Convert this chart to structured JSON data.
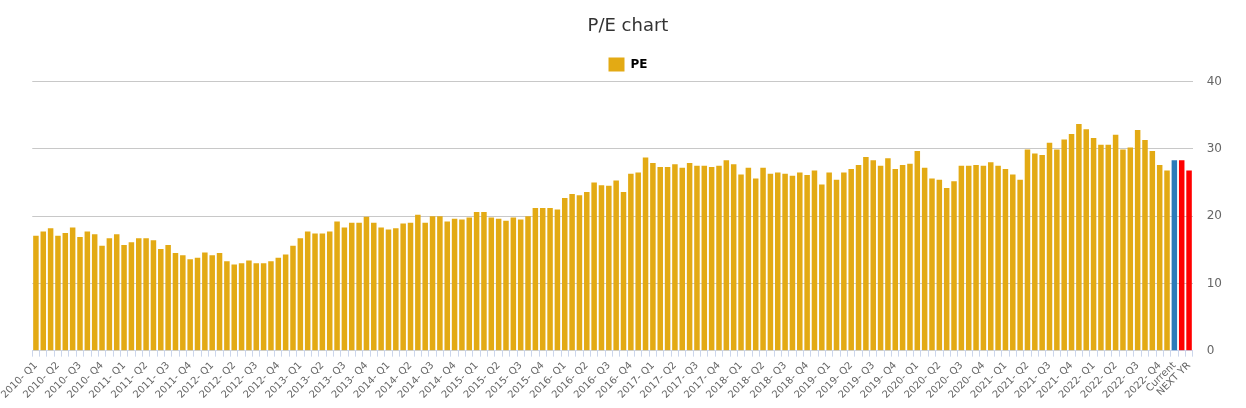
{
  "chart_data": {
    "type": "bar",
    "title": "P/E chart",
    "categories": [
      "2010- Q1",
      null,
      null,
      "2010- Q2",
      null,
      null,
      "2010- Q3",
      null,
      null,
      "2010- Q4",
      null,
      null,
      "2011- Q1",
      null,
      null,
      "2011- Q2",
      null,
      null,
      "2011- Q3",
      null,
      null,
      "2011- Q4",
      null,
      null,
      "2012- Q1",
      null,
      null,
      "2012- Q2",
      null,
      null,
      "2012- Q3",
      null,
      null,
      "2012- Q4",
      null,
      null,
      "2013- Q1",
      null,
      null,
      "2013- Q2",
      null,
      null,
      "2013- Q3",
      null,
      null,
      "2013- Q4",
      null,
      null,
      "2014- Q1",
      null,
      null,
      "2014- Q2",
      null,
      null,
      "2014- Q3",
      null,
      null,
      "2014- Q4",
      null,
      null,
      "2015- Q1",
      null,
      null,
      "2015- Q2",
      null,
      null,
      "2015- Q3",
      null,
      null,
      "2015- Q4",
      null,
      null,
      "2016- Q1",
      null,
      null,
      "2016- Q2",
      null,
      null,
      "2016- Q3",
      null,
      null,
      "2016- Q4",
      null,
      null,
      "2017- Q1",
      null,
      null,
      "2017- Q2",
      null,
      null,
      "2017- Q3",
      null,
      null,
      "2017- Q4",
      null,
      null,
      "2018- Q1",
      null,
      null,
      "2018- Q2",
      null,
      null,
      "2018- Q3",
      null,
      null,
      "2018- Q4",
      null,
      null,
      "2019- Q1",
      null,
      null,
      "2019- Q2",
      null,
      null,
      "2019- Q3",
      null,
      null,
      "2019- Q4",
      null,
      null,
      "2020- Q1",
      null,
      null,
      "2020- Q2",
      null,
      null,
      "2020- Q3",
      null,
      null,
      "2020- Q4",
      null,
      null,
      "2021- Q1",
      null,
      null,
      "2021- Q2",
      null,
      null,
      "2021- Q3",
      null,
      null,
      "2021- Q4",
      null,
      null,
      "2022- Q1",
      null,
      null,
      "2022- Q2",
      null,
      null,
      "2022- Q3",
      null,
      null,
      "2022- Q4",
      null,
      "Current",
      null,
      "NEXT YR"
    ],
    "series": [
      {
        "name": "PE",
        "color": "#e3aa14",
        "colors": [
          "#e3aa14",
          "#e3aa14",
          "#e3aa14",
          "#e3aa14",
          "#e3aa14",
          "#e3aa14",
          "#e3aa14",
          "#e3aa14",
          "#e3aa14",
          "#e3aa14",
          "#e3aa14",
          "#e3aa14",
          "#e3aa14",
          "#e3aa14",
          "#e3aa14",
          "#e3aa14",
          "#e3aa14",
          "#e3aa14",
          "#e3aa14",
          "#e3aa14",
          "#e3aa14",
          "#e3aa14",
          "#e3aa14",
          "#e3aa14",
          "#e3aa14",
          "#e3aa14",
          "#e3aa14",
          "#e3aa14",
          "#e3aa14",
          "#e3aa14",
          "#e3aa14",
          "#e3aa14",
          "#e3aa14",
          "#e3aa14",
          "#e3aa14",
          "#e3aa14",
          "#e3aa14",
          "#e3aa14",
          "#e3aa14",
          "#e3aa14",
          "#e3aa14",
          "#e3aa14",
          "#e3aa14",
          "#e3aa14",
          "#e3aa14",
          "#e3aa14",
          "#e3aa14",
          "#e3aa14",
          "#e3aa14",
          "#e3aa14",
          "#e3aa14",
          "#e3aa14",
          "#e3aa14",
          "#e3aa14",
          "#e3aa14",
          "#e3aa14",
          "#e3aa14",
          "#e3aa14",
          "#e3aa14",
          "#e3aa14",
          "#e3aa14",
          "#e3aa14",
          "#e3aa14",
          "#e3aa14",
          "#e3aa14",
          "#e3aa14",
          "#e3aa14",
          "#e3aa14",
          "#e3aa14",
          "#e3aa14",
          "#e3aa14",
          "#e3aa14",
          "#e3aa14",
          "#e3aa14",
          "#e3aa14",
          "#e3aa14",
          "#e3aa14",
          "#e3aa14",
          "#e3aa14",
          "#e3aa14",
          "#e3aa14",
          "#e3aa14",
          "#e3aa14",
          "#e3aa14",
          "#e3aa14",
          "#e3aa14",
          "#e3aa14",
          "#e3aa14",
          "#e3aa14",
          "#e3aa14",
          "#e3aa14",
          "#e3aa14",
          "#e3aa14",
          "#e3aa14",
          "#e3aa14",
          "#e3aa14",
          "#e3aa14",
          "#e3aa14",
          "#e3aa14",
          "#e3aa14",
          "#e3aa14",
          "#e3aa14",
          "#e3aa14",
          "#e3aa14",
          "#e3aa14",
          "#e3aa14",
          "#e3aa14",
          "#e3aa14",
          "#e3aa14",
          "#e3aa14",
          "#e3aa14",
          "#e3aa14",
          "#e3aa14",
          "#e3aa14",
          "#e3aa14",
          "#e3aa14",
          "#e3aa14",
          "#e3aa14",
          "#e3aa14",
          "#e3aa14",
          "#e3aa14",
          "#e3aa14",
          "#e3aa14",
          "#e3aa14",
          "#e3aa14",
          "#e3aa14",
          "#e3aa14",
          "#e3aa14",
          "#e3aa14",
          "#e3aa14",
          "#e3aa14",
          "#e3aa14",
          "#e3aa14",
          "#e3aa14",
          "#e3aa14",
          "#e3aa14",
          "#e3aa14",
          "#e3aa14",
          "#e3aa14",
          "#e3aa14",
          "#e3aa14",
          "#e3aa14",
          "#e3aa14",
          "#e3aa14",
          "#e3aa14",
          "#e3aa14",
          "#e3aa14",
          "#e3aa14",
          "#e3aa14",
          "#e3aa14",
          "#e3aa14",
          "#e3aa14",
          "#e3aa14",
          "#e3aa14",
          "#e3aa14",
          "#2b7bb9",
          "#ff0000",
          "#ff0000"
        ],
        "values": [
          17.1,
          17.7,
          18.2,
          17.1,
          17.5,
          18.3,
          16.9,
          17.7,
          17.3,
          15.6,
          16.7,
          17.3,
          15.7,
          16.1,
          16.7,
          16.7,
          16.4,
          15.1,
          15.7,
          14.5,
          14.2,
          13.6,
          13.8,
          14.6,
          14.2,
          14.5,
          13.3,
          12.8,
          13.0,
          13.4,
          13.0,
          13.0,
          13.3,
          13.8,
          14.3,
          15.6,
          16.7,
          17.7,
          17.4,
          17.4,
          17.7,
          19.2,
          18.3,
          19.0,
          19.0,
          19.9,
          19.0,
          18.3,
          18.0,
          18.2,
          18.9,
          19.0,
          20.2,
          19.0,
          20.0,
          20.0,
          19.2,
          19.6,
          19.5,
          19.8,
          20.6,
          20.6,
          19.8,
          19.6,
          19.3,
          19.8,
          19.5,
          20.0,
          21.2,
          21.2,
          21.2,
          21.0,
          22.7,
          23.3,
          23.1,
          23.6,
          25.0,
          24.6,
          24.5,
          25.3,
          23.6,
          26.3,
          26.5,
          28.7,
          27.9,
          27.3,
          27.3,
          27.7,
          27.2,
          27.9,
          27.5,
          27.5,
          27.3,
          27.5,
          28.3,
          27.7,
          26.2,
          27.2,
          25.6,
          27.2,
          26.3,
          26.5,
          26.3,
          26.0,
          26.5,
          26.1,
          26.8,
          24.7,
          26.5,
          25.4,
          26.5,
          27.0,
          27.6,
          28.8,
          28.3,
          27.5,
          28.6,
          27.0,
          27.6,
          27.8,
          29.7,
          27.2,
          25.6,
          25.4,
          24.2,
          25.2,
          27.5,
          27.5,
          27.6,
          27.5,
          28.0,
          27.5,
          27.0,
          26.2,
          25.4,
          29.9,
          29.3,
          29.1,
          30.9,
          29.9,
          31.4,
          32.2,
          33.7,
          32.9,
          31.6,
          30.6,
          30.6,
          32.1,
          29.9,
          30.2,
          32.8,
          31.3,
          29.7,
          27.6,
          26.8,
          28.3,
          28.3,
          26.8
        ]
      }
    ],
    "ylim": [
      0,
      40
    ],
    "yticks": [
      0,
      10,
      20,
      30,
      40
    ],
    "grid": "y",
    "legend": "top"
  }
}
